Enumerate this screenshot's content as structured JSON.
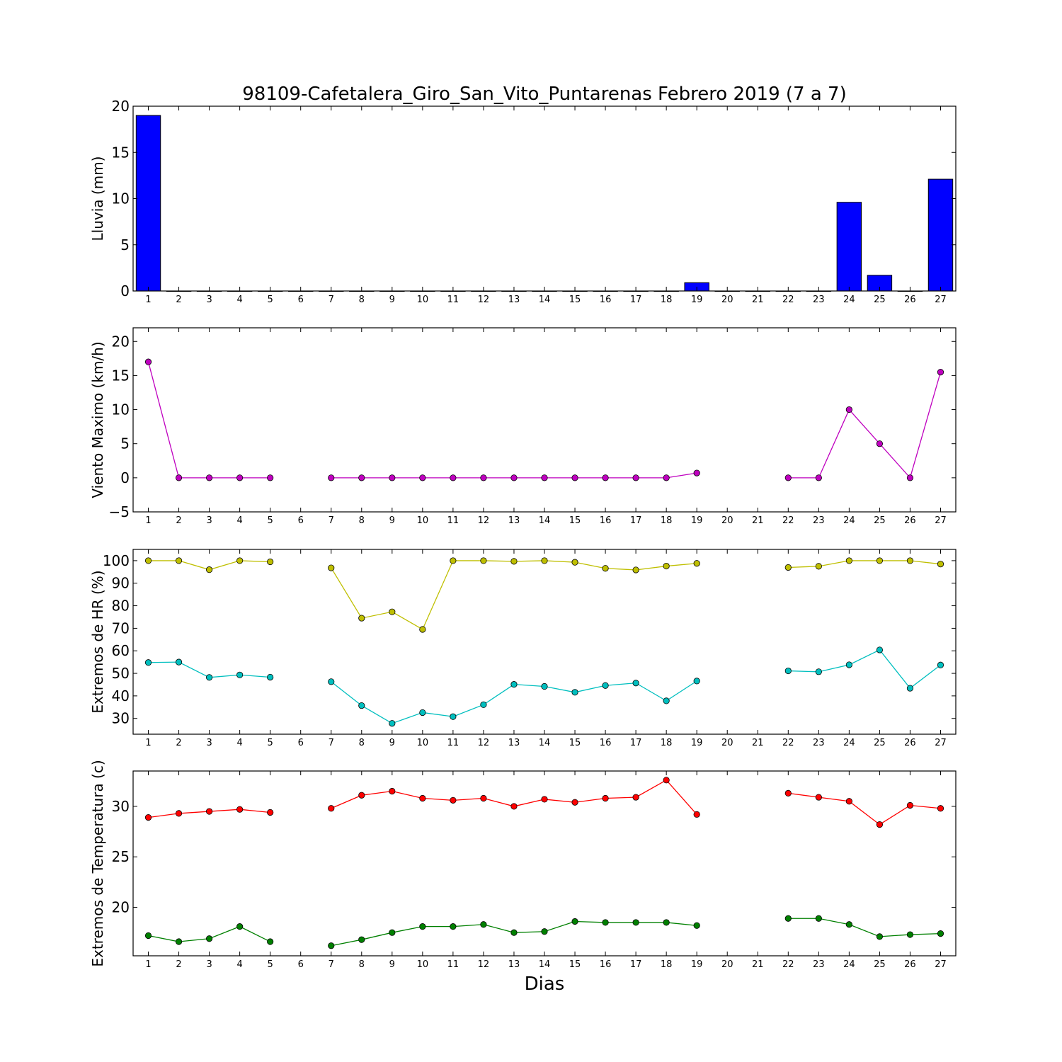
{
  "figure": {
    "title": "98109-Cafetalera_Giro_San_Vito_Puntarenas Febrero 2019  (7 a 7)",
    "xlabel": "Dias"
  },
  "chart_data": [
    {
      "type": "bar",
      "ylabel": "Lluvia (mm)",
      "ylim": [
        0,
        20
      ],
      "yticks": [
        "0",
        "5",
        "10",
        "15",
        "20"
      ],
      "xlim": [
        0.5,
        27.5
      ],
      "x": [
        1,
        2,
        3,
        4,
        5,
        6,
        7,
        8,
        9,
        10,
        11,
        12,
        13,
        14,
        15,
        16,
        17,
        18,
        19,
        20,
        21,
        22,
        23,
        24,
        25,
        26,
        27
      ],
      "series": [
        {
          "color": "#0000ff",
          "values": [
            19,
            0,
            0,
            0,
            0,
            0,
            0,
            0,
            0,
            0,
            0,
            0,
            0,
            0,
            0,
            0,
            0,
            0,
            0.9,
            0,
            0,
            0,
            0,
            9.6,
            1.7,
            0,
            12.1
          ]
        }
      ]
    },
    {
      "type": "line",
      "ylabel": "Viento Maximo (km/h)",
      "ylim": [
        -5,
        22
      ],
      "yticks": [
        "−5",
        "0",
        "5",
        "10",
        "15",
        "20"
      ],
      "xlim": [
        0.5,
        27.5
      ],
      "x": [
        1,
        2,
        3,
        4,
        5,
        6,
        7,
        8,
        9,
        10,
        11,
        12,
        13,
        14,
        15,
        16,
        17,
        18,
        19,
        20,
        21,
        22,
        23,
        24,
        25,
        26,
        27
      ],
      "series": [
        {
          "color": "#bf00bf",
          "values": [
            17,
            0,
            0,
            0,
            0,
            null,
            0,
            0,
            0,
            0,
            0,
            0,
            0,
            0,
            0,
            0,
            0,
            0,
            0.7,
            null,
            null,
            0,
            0,
            10,
            5,
            0,
            15.5
          ]
        }
      ]
    },
    {
      "type": "line",
      "ylabel": "Extremos de HR (%)",
      "ylim": [
        23,
        105
      ],
      "yticks": [
        "30",
        "40",
        "50",
        "60",
        "70",
        "80",
        "90",
        "100"
      ],
      "xlim": [
        0.5,
        27.5
      ],
      "x": [
        1,
        2,
        3,
        4,
        5,
        6,
        7,
        8,
        9,
        10,
        11,
        12,
        13,
        14,
        15,
        16,
        17,
        18,
        19,
        20,
        21,
        22,
        23,
        24,
        25,
        26,
        27
      ],
      "series": [
        {
          "color": "#bfbf00",
          "values": [
            100,
            100,
            96,
            100,
            99.5,
            null,
            96.8,
            74.5,
            77.3,
            69.5,
            100,
            100,
            99.7,
            100,
            99.3,
            96.6,
            95.9,
            97.6,
            98.8,
            null,
            null,
            97,
            97.5,
            100,
            100,
            100,
            98.5
          ]
        },
        {
          "color": "#00bfbf",
          "values": [
            54.8,
            55,
            48.2,
            49.3,
            48.3,
            null,
            46.3,
            35.7,
            27.8,
            32.6,
            30.8,
            36.1,
            45.1,
            44.2,
            41.6,
            44.6,
            45.7,
            37.8,
            46.6,
            null,
            null,
            51.1,
            50.7,
            53.8,
            60.4,
            43.4,
            53.7
          ]
        }
      ]
    },
    {
      "type": "line",
      "ylabel": "Extremos de Temperatura (c)",
      "ylim": [
        15.2,
        33.5
      ],
      "yticks": [
        "20",
        "25",
        "30"
      ],
      "xlim": [
        0.5,
        27.5
      ],
      "x": [
        1,
        2,
        3,
        4,
        5,
        6,
        7,
        8,
        9,
        10,
        11,
        12,
        13,
        14,
        15,
        16,
        17,
        18,
        19,
        20,
        21,
        22,
        23,
        24,
        25,
        26,
        27
      ],
      "series": [
        {
          "color": "#ff0000",
          "values": [
            28.9,
            29.3,
            29.5,
            29.7,
            29.4,
            null,
            29.8,
            31.1,
            31.5,
            30.8,
            30.6,
            30.8,
            30,
            30.7,
            30.4,
            30.8,
            30.9,
            32.6,
            29.2,
            null,
            null,
            31.3,
            30.9,
            30.5,
            28.2,
            30.1,
            29.8
          ]
        },
        {
          "color": "#008000",
          "values": [
            17.2,
            16.6,
            16.9,
            18.1,
            16.6,
            null,
            16.2,
            16.8,
            17.5,
            18.1,
            18.1,
            18.3,
            17.5,
            17.6,
            18.6,
            18.5,
            18.5,
            18.5,
            18.2,
            null,
            null,
            18.9,
            18.9,
            18.3,
            17.1,
            17.3,
            17.4
          ]
        }
      ]
    }
  ]
}
